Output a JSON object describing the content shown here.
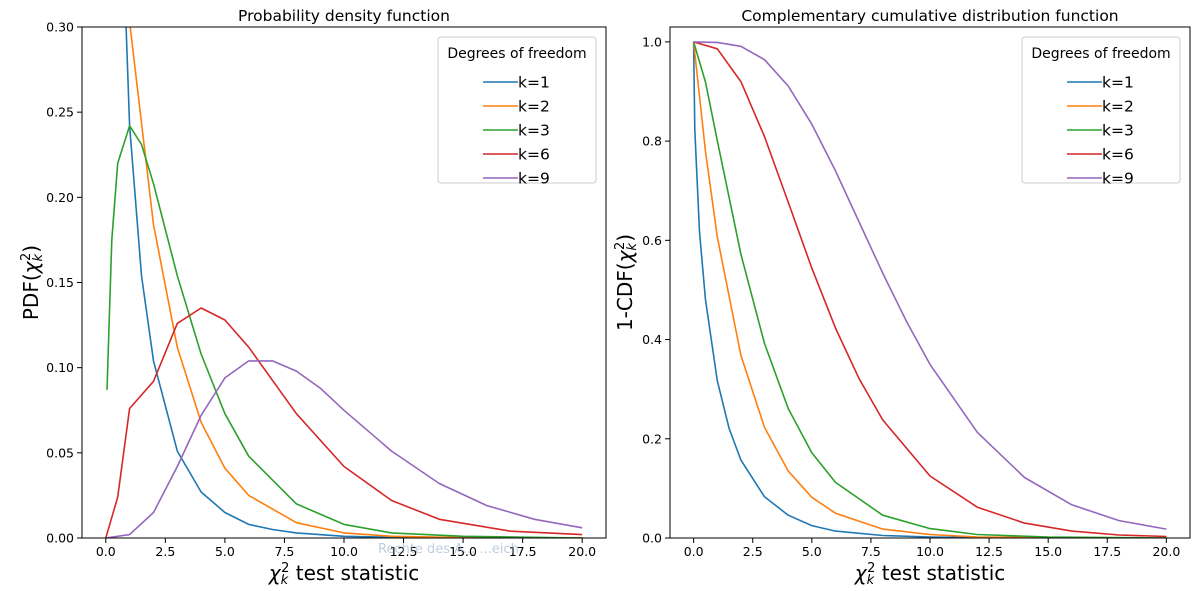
{
  "chart_data": [
    {
      "type": "line",
      "title": "Probability density function",
      "xlabel_symbol": "χ",
      "xlabel_sub": "k",
      "xlabel_sup": "2",
      "xlabel_text": " test statistic",
      "ylabel_prefix": "PDF(",
      "ylabel_symbol": "χ",
      "ylabel_sub": "k",
      "ylabel_sup": "2",
      "ylabel_suffix": ")",
      "xlim": [
        -1,
        21
      ],
      "ylim": [
        0,
        0.3
      ],
      "xticks": [
        0,
        2.5,
        5,
        7.5,
        10,
        12.5,
        15,
        17.5,
        20
      ],
      "xtick_labels": [
        "0.0",
        "2.5",
        "5.0",
        "7.5",
        "10.0",
        "12.5",
        "15.0",
        "17.5",
        "20.0"
      ],
      "yticks": [
        0,
        0.05,
        0.1,
        0.15,
        0.2,
        0.25,
        0.3
      ],
      "ytick_labels": [
        "0.00",
        "0.05",
        "0.10",
        "0.15",
        "0.20",
        "0.25",
        "0.30"
      ],
      "legend_title": "Degrees of freedom",
      "legend_position": "top-right",
      "grid": false,
      "series": [
        {
          "name": "k=1",
          "color": "#1f77b4",
          "x": [
            0.5,
            1,
            1.5,
            2,
            3,
            4,
            5,
            6,
            7,
            8,
            10,
            12,
            15,
            20
          ],
          "values": [
            0.439,
            0.242,
            0.154,
            0.104,
            0.051,
            0.027,
            0.015,
            0.008,
            0.005,
            0.003,
            0.001,
            0.0004,
            0.0001,
            0.0
          ]
        },
        {
          "name": "k=2",
          "color": "#ff7f0e",
          "x": [
            0.5,
            1,
            2,
            3,
            4,
            5,
            6,
            8,
            10,
            12,
            15,
            20
          ],
          "values": [
            0.389,
            0.303,
            0.184,
            0.112,
            0.068,
            0.041,
            0.025,
            0.009,
            0.003,
            0.001,
            0.0003,
            0.0
          ]
        },
        {
          "name": "k=3",
          "color": "#2ca02c",
          "x": [
            0.05,
            0.25,
            0.5,
            1,
            1.5,
            2,
            3,
            4,
            5,
            6,
            8,
            10,
            12,
            15,
            20
          ],
          "values": [
            0.087,
            0.175,
            0.22,
            0.242,
            0.231,
            0.208,
            0.154,
            0.108,
            0.073,
            0.048,
            0.02,
            0.008,
            0.003,
            0.001,
            0.0
          ]
        },
        {
          "name": "k=6",
          "color": "#d62728",
          "x": [
            0,
            0.5,
            1,
            2,
            3,
            4,
            5,
            6,
            8,
            10,
            12,
            14,
            17,
            20
          ],
          "values": [
            0.0,
            0.024,
            0.076,
            0.092,
            0.126,
            0.135,
            0.128,
            0.112,
            0.073,
            0.042,
            0.022,
            0.011,
            0.004,
            0.002
          ]
        },
        {
          "name": "k=9",
          "color": "#9467bd",
          "x": [
            0,
            1,
            2,
            3,
            4,
            5,
            6,
            7,
            8,
            9,
            10,
            12,
            14,
            16,
            18,
            20
          ],
          "values": [
            0.0,
            0.002,
            0.015,
            0.042,
            0.072,
            0.094,
            0.104,
            0.104,
            0.098,
            0.088,
            0.075,
            0.051,
            0.032,
            0.019,
            0.011,
            0.006
          ]
        }
      ]
    },
    {
      "type": "line",
      "title": "Complementary cumulative distribution function",
      "xlabel_symbol": "χ",
      "xlabel_sub": "k",
      "xlabel_sup": "2",
      "xlabel_text": " test statistic",
      "ylabel_prefix": "1-CDF(",
      "ylabel_symbol": "χ",
      "ylabel_sub": "k",
      "ylabel_sup": "2",
      "ylabel_suffix": ")",
      "xlim": [
        -1,
        21
      ],
      "ylim": [
        0,
        1.03
      ],
      "xticks": [
        0,
        2.5,
        5,
        7.5,
        10,
        12.5,
        15,
        17.5,
        20
      ],
      "xtick_labels": [
        "0.0",
        "2.5",
        "5.0",
        "7.5",
        "10.0",
        "12.5",
        "15.0",
        "17.5",
        "20.0"
      ],
      "yticks": [
        0,
        0.2,
        0.4,
        0.6,
        0.8,
        1.0
      ],
      "ytick_labels": [
        "0.0",
        "0.2",
        "0.4",
        "0.6",
        "0.8",
        "1.0"
      ],
      "legend_title": "Degrees of freedom",
      "legend_position": "top-right",
      "grid": false,
      "series": [
        {
          "name": "k=1",
          "color": "#1f77b4",
          "x": [
            0,
            0.05,
            0.25,
            0.5,
            1,
            1.5,
            2,
            3,
            4,
            5,
            6,
            8,
            10,
            12,
            15,
            20
          ],
          "values": [
            1.0,
            0.823,
            0.617,
            0.48,
            0.317,
            0.221,
            0.157,
            0.083,
            0.046,
            0.025,
            0.014,
            0.005,
            0.002,
            0.001,
            0.0001,
            0.0
          ]
        },
        {
          "name": "k=2",
          "color": "#ff7f0e",
          "x": [
            0,
            0.5,
            1,
            2,
            3,
            4,
            5,
            6,
            8,
            10,
            12,
            15,
            20
          ],
          "values": [
            1.0,
            0.779,
            0.607,
            0.368,
            0.223,
            0.135,
            0.082,
            0.05,
            0.018,
            0.007,
            0.002,
            0.001,
            0.0
          ]
        },
        {
          "name": "k=3",
          "color": "#2ca02c",
          "x": [
            0,
            0.5,
            1,
            2,
            3,
            4,
            5,
            6,
            8,
            10,
            12,
            15,
            20
          ],
          "values": [
            1.0,
            0.919,
            0.801,
            0.572,
            0.392,
            0.261,
            0.172,
            0.112,
            0.046,
            0.019,
            0.007,
            0.002,
            0.0
          ]
        },
        {
          "name": "k=6",
          "color": "#d62728",
          "x": [
            0,
            1,
            2,
            3,
            4,
            5,
            6,
            7,
            8,
            10,
            12,
            14,
            16,
            18,
            20
          ],
          "values": [
            1.0,
            0.986,
            0.92,
            0.809,
            0.677,
            0.544,
            0.423,
            0.321,
            0.238,
            0.125,
            0.062,
            0.03,
            0.014,
            0.006,
            0.003
          ]
        },
        {
          "name": "k=9",
          "color": "#9467bd",
          "x": [
            0,
            1,
            2,
            3,
            4,
            5,
            6,
            7,
            8,
            9,
            10,
            12,
            14,
            16,
            18,
            20
          ],
          "values": [
            1.0,
            0.999,
            0.991,
            0.964,
            0.911,
            0.834,
            0.74,
            0.637,
            0.534,
            0.437,
            0.35,
            0.213,
            0.122,
            0.067,
            0.035,
            0.018
          ]
        }
      ]
    }
  ],
  "watermark": "Rechte des A... ...eich"
}
